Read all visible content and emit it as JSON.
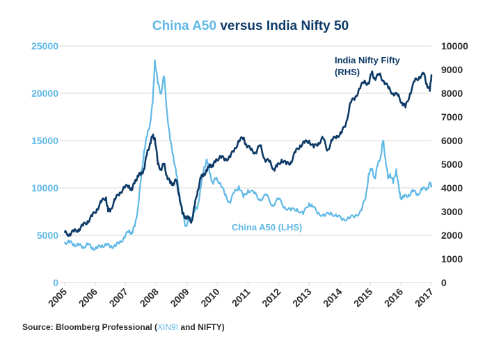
{
  "chart_data": {
    "type": "line",
    "title": "China A50 versus India Nifty 50",
    "title_parts": [
      {
        "text": "China A50",
        "color": "#5fb8e6"
      },
      {
        "text": " versus India Nifty 50",
        "color": "#0d3a66"
      }
    ],
    "xlabel": "",
    "ylabel_left": "",
    "ylabel_right": "",
    "x_ticks": [
      "2005",
      "2006",
      "2007",
      "2008",
      "2009",
      "2010",
      "2011",
      "2012",
      "2013",
      "2014",
      "2015",
      "2016",
      "2017"
    ],
    "xlim": [
      2005,
      2017
    ],
    "ylim_left": [
      0,
      25000
    ],
    "ylim_right": [
      0,
      10000
    ],
    "y_ticks_left": [
      "0",
      "5000",
      "10000",
      "15000",
      "20000",
      "25000"
    ],
    "y_ticks_right": [
      "0",
      "1000",
      "2000",
      "3000",
      "4000",
      "5000",
      "6000",
      "7000",
      "8000",
      "9000",
      "10000"
    ],
    "grid": true,
    "colors": {
      "china": "#5fb8e6",
      "nifty": "#0d3a66",
      "grid": "#e6e6e6",
      "axis_text": "#2b2b2b"
    },
    "series": [
      {
        "name": "China A50 (LHS)",
        "axis": "left",
        "color": "#5fb8e6",
        "x": [
          2005.0,
          2005.15,
          2005.3,
          2005.45,
          2005.6,
          2005.75,
          2005.9,
          2006.05,
          2006.2,
          2006.35,
          2006.5,
          2006.65,
          2006.8,
          2006.95,
          2007.1,
          2007.2,
          2007.3,
          2007.4,
          2007.5,
          2007.6,
          2007.7,
          2007.8,
          2007.88,
          2007.95,
          2008.05,
          2008.15,
          2008.25,
          2008.35,
          2008.45,
          2008.55,
          2008.65,
          2008.75,
          2008.85,
          2008.95,
          2009.05,
          2009.15,
          2009.25,
          2009.35,
          2009.45,
          2009.55,
          2009.65,
          2009.75,
          2009.85,
          2009.95,
          2010.1,
          2010.25,
          2010.4,
          2010.55,
          2010.7,
          2010.85,
          2011.0,
          2011.2,
          2011.4,
          2011.6,
          2011.8,
          2012.0,
          2012.2,
          2012.4,
          2012.6,
          2012.8,
          2013.0,
          2013.1,
          2013.3,
          2013.5,
          2013.7,
          2013.9,
          2014.1,
          2014.3,
          2014.5,
          2014.7,
          2014.85,
          2014.95,
          2015.05,
          2015.15,
          2015.25,
          2015.35,
          2015.42,
          2015.5,
          2015.58,
          2015.65,
          2015.75,
          2015.85,
          2015.95,
          2016.0,
          2016.1,
          2016.25,
          2016.4,
          2016.55,
          2016.7,
          2016.85,
          2016.95,
          2017.0
        ],
        "values": [
          4300,
          4200,
          4100,
          3900,
          3800,
          4000,
          3700,
          3600,
          3900,
          4000,
          3800,
          3900,
          4200,
          4800,
          5400,
          5300,
          6000,
          8000,
          11000,
          14000,
          15500,
          17000,
          19000,
          23500,
          21000,
          20000,
          21800,
          18000,
          15000,
          13500,
          11500,
          9500,
          7500,
          6000,
          6500,
          6800,
          7500,
          8000,
          10000,
          12000,
          13000,
          11500,
          10500,
          11000,
          10500,
          9200,
          8500,
          9500,
          10200,
          9000,
          9800,
          9400,
          8800,
          9200,
          8200,
          8800,
          8000,
          7600,
          7800,
          7200,
          8400,
          8000,
          7400,
          7000,
          7400,
          7000,
          6700,
          6800,
          7000,
          7600,
          9000,
          11500,
          12000,
          11000,
          12500,
          13500,
          15000,
          13000,
          11000,
          11500,
          10500,
          12000,
          9500,
          9000,
          9000,
          9300,
          9600,
          9400,
          9800,
          10000,
          10400,
          10300
        ]
      },
      {
        "name": "India Nifty Fifty (RHS)",
        "axis": "right",
        "color": "#0d3a66",
        "x": [
          2005.0,
          2005.15,
          2005.3,
          2005.45,
          2005.6,
          2005.75,
          2005.9,
          2006.05,
          2006.2,
          2006.35,
          2006.42,
          2006.5,
          2006.65,
          2006.8,
          2006.95,
          2007.1,
          2007.2,
          2007.3,
          2007.4,
          2007.5,
          2007.6,
          2007.7,
          2007.8,
          2007.88,
          2007.95,
          2008.05,
          2008.15,
          2008.25,
          2008.35,
          2008.45,
          2008.55,
          2008.65,
          2008.75,
          2008.85,
          2008.95,
          2009.05,
          2009.15,
          2009.25,
          2009.35,
          2009.45,
          2009.55,
          2009.65,
          2009.75,
          2009.85,
          2009.95,
          2010.1,
          2010.25,
          2010.4,
          2010.55,
          2010.7,
          2010.85,
          2010.95,
          2011.1,
          2011.25,
          2011.4,
          2011.55,
          2011.7,
          2011.85,
          2011.95,
          2012.1,
          2012.25,
          2012.4,
          2012.55,
          2012.7,
          2012.85,
          2013.0,
          2013.15,
          2013.3,
          2013.45,
          2013.6,
          2013.75,
          2013.9,
          2014.05,
          2014.2,
          2014.35,
          2014.5,
          2014.65,
          2014.8,
          2014.95,
          2015.05,
          2015.15,
          2015.3,
          2015.45,
          2015.6,
          2015.75,
          2015.9,
          2016.05,
          2016.15,
          2016.3,
          2016.45,
          2016.6,
          2016.75,
          2016.85,
          2016.95,
          2017.0
        ],
        "values": [
          2100,
          2050,
          2150,
          2250,
          2400,
          2600,
          2800,
          3100,
          3400,
          3600,
          3000,
          3100,
          3500,
          3800,
          4000,
          4100,
          3900,
          4300,
          4500,
          4600,
          4800,
          5500,
          5900,
          6200,
          6100,
          5000,
          4800,
          5000,
          4500,
          4200,
          4200,
          4300,
          3700,
          2900,
          2800,
          2700,
          2600,
          3200,
          3900,
          4400,
          4600,
          4700,
          5000,
          4900,
          5200,
          5300,
          5200,
          5300,
          5600,
          6000,
          6100,
          5800,
          5600,
          5500,
          5800,
          5200,
          5100,
          4800,
          4900,
          5200,
          5000,
          5100,
          5500,
          5800,
          5900,
          6000,
          5700,
          5900,
          6100,
          5600,
          6000,
          6200,
          6300,
          6700,
          7600,
          7800,
          8200,
          8500,
          8400,
          8900,
          8600,
          8800,
          8500,
          8200,
          8000,
          7900,
          7600,
          7400,
          8000,
          8500,
          8700,
          8800,
          8400,
          8100,
          8800
        ]
      }
    ],
    "annotations": [
      {
        "text_lines": [
          "India Nifty Fifty",
          "(RHS)"
        ],
        "color": "#0d3a66"
      },
      {
        "text": "China A50 (LHS)",
        "color": "#5fb8e6"
      }
    ]
  },
  "source": {
    "prefix": "Source: Bloomberg Professional (",
    "highlight": "XIN9I",
    "suffix": " and NIFTY)"
  }
}
